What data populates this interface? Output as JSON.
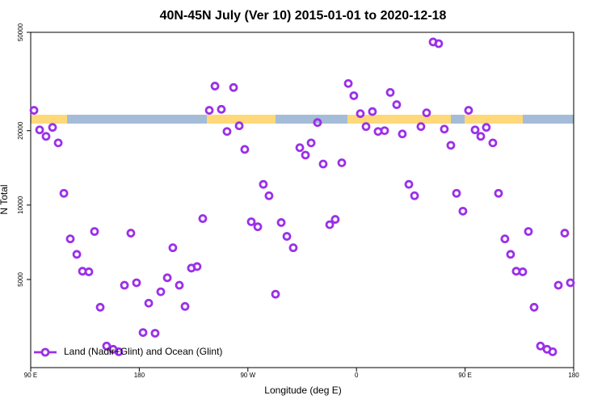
{
  "chart_data": {
    "type": "scatter",
    "title": "40N-45N July (Ver 10)   2015-01-01 to 2020-12-18",
    "xlabel": "Longitude (deg E)",
    "ylabel": "N Total",
    "x": [
      92.7,
      97.4,
      102.7,
      108.1,
      112.8,
      117.5,
      122.8,
      128.2,
      132.9,
      138.2,
      142.9,
      147.6,
      152.9,
      158.3,
      163.0,
      167.7,
      173.0,
      177.7,
      183.1,
      187.8,
      193.1,
      197.8,
      203.2,
      207.8,
      213.2,
      217.9,
      223.2,
      227.9,
      232.6,
      238.0,
      242.7,
      248.0,
      252.7,
      258.1,
      262.8,
      267.4,
      272.8,
      278.2,
      282.8,
      287.5,
      292.9,
      297.6,
      302.3,
      307.6,
      313.0,
      317.7,
      322.4,
      327.7,
      332.4,
      337.8,
      342.4,
      347.8,
      353.2,
      357.8,
      363.2,
      367.9,
      373.2,
      377.9,
      383.3,
      388.0,
      393.3,
      398.0,
      403.4,
      408.1,
      413.4,
      418.1,
      423.5,
      428.1,
      432.8,
      438.2,
      442.9,
      448.2,
      452.9,
      458.3,
      463.0,
      467.6,
      473.0,
      477.7,
      483.0,
      487.7,
      492.4,
      497.8,
      502.5,
      507.2,
      512.5,
      517.9,
      522.6,
      527.3,
      532.6,
      537.3
    ],
    "series": [
      {
        "name": "Land (Nadir+Glint) and Ocean (Glint)",
        "color": "#9b30e8",
        "values": [
          24170,
          20150,
          18970,
          20620,
          17850,
          11160,
          7300,
          6320,
          5400,
          5370,
          7820,
          3860,
          2690,
          2610,
          2550,
          4740,
          7700,
          4850,
          3050,
          4010,
          3030,
          4460,
          5080,
          6720,
          4740,
          3890,
          5560,
          5640,
          8820,
          24170,
          30300,
          24400,
          19850,
          29900,
          20930,
          16800,
          8560,
          8170,
          12130,
          10910,
          4360,
          8500,
          7470,
          6720,
          17070,
          15930,
          17850,
          21570,
          14660,
          8330,
          8750,
          14830,
          31040,
          27700,
          23440,
          20780,
          23900,
          19850,
          20000,
          28560,
          25490,
          19400,
          12130,
          10910,
          20780,
          23620,
          45700,
          45000,
          20300,
          17450,
          11160,
          9450,
          24170,
          20150,
          18970,
          20620,
          17850,
          11160,
          7300,
          6320,
          5400,
          5370,
          7820,
          3860,
          2690,
          2610,
          2550,
          4740,
          7700,
          4850
        ]
      }
    ],
    "xlim": [
      90,
      540
    ],
    "xticks": [
      {
        "value": 90,
        "label": "90 E"
      },
      180,
      {
        "value": 270,
        "label": "90 W"
      },
      {
        "value": 360,
        "label": "0"
      },
      {
        "value": 450,
        "label": "90 E"
      },
      {
        "value": 540,
        "label": "180"
      }
    ],
    "ylim": [
      2200,
      50000
    ],
    "yticks": [
      5000,
      10000,
      20000,
      50000
    ],
    "log_y": true,
    "legend": "lower left"
  }
}
